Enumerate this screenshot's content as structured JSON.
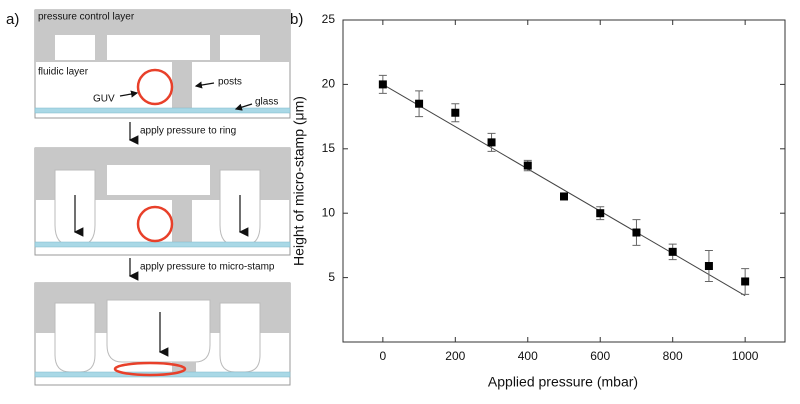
{
  "diagram": {
    "panel_label": "a)",
    "top_layer": "pressure control layer",
    "fluid_layer": "fluidic layer",
    "guv": "GUV",
    "posts": "posts",
    "glass": "glass",
    "step1": "apply pressure to ring",
    "step2": "apply pressure to micro-stamp"
  },
  "chart_data": {
    "type": "scatter",
    "panel_label": "b)",
    "x_label": "Applied pressure (mbar)",
    "y_label": "Height of micro-stamp (μm)",
    "x": [
      0,
      100,
      200,
      300,
      400,
      500,
      600,
      700,
      800,
      900,
      1000
    ],
    "series": [
      {
        "color": "#000000",
        "values": [
          20,
          18.5,
          17.8,
          15.5,
          13.7,
          11.3,
          10,
          8.5,
          7,
          5.9,
          4.7
        ],
        "errors": [
          0.7,
          1.0,
          0.7,
          0.7,
          0.4,
          0.2,
          0.5,
          1.0,
          0.6,
          1.2,
          1.0
        ]
      }
    ],
    "fit": {
      "x": [
        0,
        1000
      ],
      "values": [
        20,
        3.6
      ]
    },
    "xlim": [
      -110,
      1110
    ],
    "ylim": [
      0,
      25
    ],
    "xticks": [
      0,
      200,
      400,
      600,
      800,
      1000
    ],
    "yticks": [
      5,
      10,
      15,
      20,
      25
    ]
  }
}
